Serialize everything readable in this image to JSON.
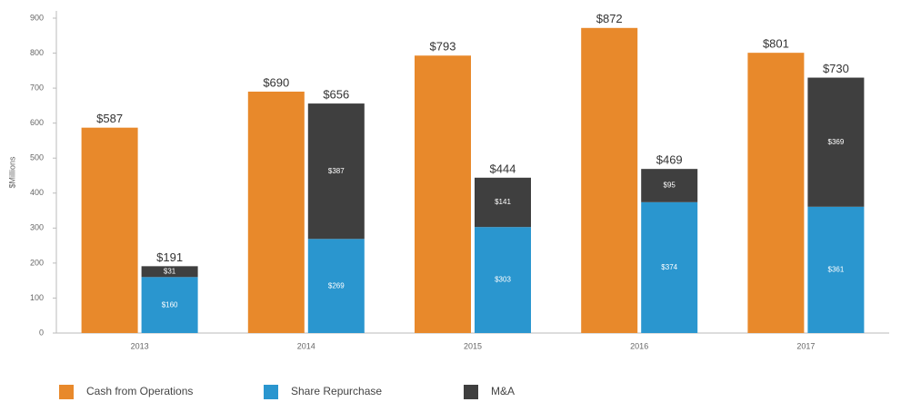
{
  "chart_data": {
    "type": "grouped_stacked_bar",
    "y_label": "$Millions",
    "categories": [
      "2013",
      "2014",
      "2015",
      "2016",
      "2017"
    ],
    "ylim": [
      0,
      900
    ],
    "yticks": [
      0,
      100,
      200,
      300,
      400,
      500,
      600,
      700,
      800,
      900
    ],
    "series": [
      {
        "name": "Cash from Operations",
        "color": "#e8892b",
        "stack": "a",
        "values": [
          587,
          690,
          793,
          872,
          801
        ],
        "value_labels": [
          "$587",
          "$690",
          "$793",
          "$872",
          "$801"
        ]
      },
      {
        "name": "Share Repurchase",
        "color": "#2a96cf",
        "stack": "b",
        "values": [
          160,
          269,
          303,
          374,
          361
        ],
        "value_labels": [
          "$160",
          "$269",
          "$303",
          "$374",
          "$361"
        ]
      },
      {
        "name": "M&A",
        "color": "#3f3f3f",
        "stack": "b",
        "values": [
          31,
          387,
          141,
          95,
          369
        ],
        "value_labels": [
          "$31",
          "$387",
          "$141",
          "$95",
          "$369"
        ]
      }
    ],
    "stack_total_labels": [
      "$191",
      "$656",
      "$444",
      "$469",
      "$730"
    ]
  }
}
